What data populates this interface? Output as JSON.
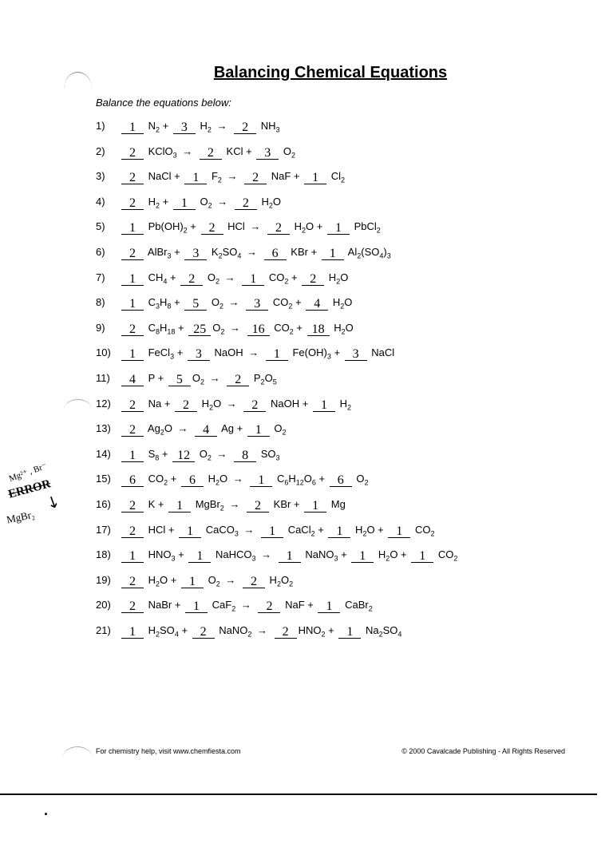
{
  "title": "Balancing Chemical Equations",
  "instruction": "Balance the equations below:",
  "footer_left": "For chemistry help, visit www.chemfiesta.com",
  "footer_right": "© 2000 Cavalcade Publishing - All Rights Reserved",
  "margin_notes": {
    "n1": "Mg²⁺ , Br⁻",
    "n2": "ERROR",
    "n3": "MgBr₂"
  },
  "equations": [
    {
      "n": "1)",
      "parts": [
        {
          "c": "1"
        },
        {
          "t": " N",
          "s": "2"
        },
        {
          "t": " + "
        },
        {
          "c": "3"
        },
        {
          "t": " H",
          "s": "2"
        },
        {
          "a": "→"
        },
        {
          "c": "2"
        },
        {
          "t": " NH",
          "s": "3"
        }
      ]
    },
    {
      "n": "2)",
      "parts": [
        {
          "c": "2"
        },
        {
          "t": " KClO",
          "s": "3"
        },
        {
          "a": "→"
        },
        {
          "c": "2"
        },
        {
          "t": " KCl + "
        },
        {
          "c": "3"
        },
        {
          "t": " O",
          "s": "2"
        }
      ]
    },
    {
      "n": "3)",
      "parts": [
        {
          "c": "2"
        },
        {
          "t": " NaCl + "
        },
        {
          "c": "1"
        },
        {
          "t": " F",
          "s": "2"
        },
        {
          "a": "→"
        },
        {
          "c": "2"
        },
        {
          "t": " NaF + "
        },
        {
          "c": "1"
        },
        {
          "t": " Cl",
          "s": "2"
        }
      ]
    },
    {
      "n": "4)",
      "parts": [
        {
          "c": "2"
        },
        {
          "t": " H",
          "s": "2"
        },
        {
          "t": " + "
        },
        {
          "c": "1"
        },
        {
          "t": " O",
          "s": "2"
        },
        {
          "a": "→"
        },
        {
          "c": "2"
        },
        {
          "t": " H",
          "s": "2"
        },
        {
          "t": "O"
        }
      ]
    },
    {
      "n": "5)",
      "parts": [
        {
          "c": "1"
        },
        {
          "t": " Pb(OH)",
          "s": "2"
        },
        {
          "t": " + "
        },
        {
          "c": "2"
        },
        {
          "t": " HCl "
        },
        {
          "a": "→"
        },
        {
          "c": "2"
        },
        {
          "t": " H",
          "s": "2"
        },
        {
          "t": "O + "
        },
        {
          "c": "1"
        },
        {
          "t": " PbCl",
          "s": "2"
        }
      ]
    },
    {
      "n": "6)",
      "parts": [
        {
          "c": "2"
        },
        {
          "t": " AlBr",
          "s": "3"
        },
        {
          "t": " + "
        },
        {
          "c": "3"
        },
        {
          "t": " K",
          "s": "2"
        },
        {
          "t": "SO",
          "s": "4"
        },
        {
          "a": "→"
        },
        {
          "c": "6"
        },
        {
          "t": " KBr + "
        },
        {
          "c": "1"
        },
        {
          "t": " Al",
          "s": "2"
        },
        {
          "t": "(SO",
          "s": "4"
        },
        {
          "t": ")",
          "s": "3"
        }
      ]
    },
    {
      "n": "7)",
      "parts": [
        {
          "c": "1"
        },
        {
          "t": " CH",
          "s": "4"
        },
        {
          "t": " + "
        },
        {
          "c": "2"
        },
        {
          "t": " O",
          "s": "2"
        },
        {
          "a": "→"
        },
        {
          "c": "1"
        },
        {
          "t": " CO",
          "s": "2"
        },
        {
          "t": " + "
        },
        {
          "c": "2"
        },
        {
          "t": " H",
          "s": "2"
        },
        {
          "t": "O"
        }
      ]
    },
    {
      "n": "8)",
      "parts": [
        {
          "c": "1"
        },
        {
          "t": " C",
          "s": "3"
        },
        {
          "t": "H",
          "s": "8"
        },
        {
          "t": " + "
        },
        {
          "c": "5"
        },
        {
          "t": " O",
          "s": "2"
        },
        {
          "a": "→"
        },
        {
          "c": "3"
        },
        {
          "t": " CO",
          "s": "2"
        },
        {
          "t": " + "
        },
        {
          "c": "4"
        },
        {
          "t": " H",
          "s": "2"
        },
        {
          "t": "O"
        }
      ]
    },
    {
      "n": "9)",
      "parts": [
        {
          "c": "2"
        },
        {
          "t": " C",
          "s": "8"
        },
        {
          "t": "H",
          "s": "18"
        },
        {
          "t": " + "
        },
        {
          "c": "25"
        },
        {
          "t": "O",
          "s": "2"
        },
        {
          "a": "→"
        },
        {
          "c": "16"
        },
        {
          "t": " CO",
          "s": "2"
        },
        {
          "t": " + "
        },
        {
          "c": "18"
        },
        {
          "t": " H",
          "s": "2"
        },
        {
          "t": "O"
        }
      ]
    },
    {
      "n": "10)",
      "parts": [
        {
          "c": "1"
        },
        {
          "t": " FeCl",
          "s": "3"
        },
        {
          "t": " + "
        },
        {
          "c": "3"
        },
        {
          "t": " NaOH "
        },
        {
          "a": "→"
        },
        {
          "c": "1"
        },
        {
          "t": " Fe(OH)",
          "s": "3"
        },
        {
          "t": " + "
        },
        {
          "c": "3"
        },
        {
          "t": " NaCl"
        }
      ]
    },
    {
      "n": "11)",
      "parts": [
        {
          "c": "4"
        },
        {
          "t": " P + "
        },
        {
          "c": "5"
        },
        {
          "t": "O",
          "s": "2"
        },
        {
          "a": "→"
        },
        {
          "c": "2"
        },
        {
          "t": " P",
          "s": "2"
        },
        {
          "t": "O",
          "s": "5"
        }
      ]
    },
    {
      "n": "12)",
      "parts": [
        {
          "c": "2"
        },
        {
          "t": " Na + "
        },
        {
          "c": "2"
        },
        {
          "t": " H",
          "s": "2"
        },
        {
          "t": "O "
        },
        {
          "a": "→"
        },
        {
          "c": "2"
        },
        {
          "t": " NaOH + "
        },
        {
          "c": "1"
        },
        {
          "t": " H",
          "s": "2"
        }
      ]
    },
    {
      "n": "13)",
      "parts": [
        {
          "c": "2"
        },
        {
          "t": " Ag",
          "s": "2"
        },
        {
          "t": "O "
        },
        {
          "a": "→"
        },
        {
          "c": "4"
        },
        {
          "t": " Ag + "
        },
        {
          "c": "1"
        },
        {
          "t": " O",
          "s": "2"
        }
      ]
    },
    {
      "n": "14)",
      "parts": [
        {
          "c": "1"
        },
        {
          "t": " S",
          "s": "8"
        },
        {
          "t": " + "
        },
        {
          "c": "12"
        },
        {
          "t": " O",
          "s": "2"
        },
        {
          "a": "→"
        },
        {
          "c": "8"
        },
        {
          "t": " SO",
          "s": "3"
        }
      ]
    },
    {
      "n": "15)",
      "parts": [
        {
          "c": "6"
        },
        {
          "t": " CO",
          "s": "2"
        },
        {
          "t": " + "
        },
        {
          "c": "6"
        },
        {
          "t": " H",
          "s": "2"
        },
        {
          "t": "O "
        },
        {
          "a": "→"
        },
        {
          "c": "1"
        },
        {
          "t": " C",
          "s": "6"
        },
        {
          "t": "H",
          "s": "12"
        },
        {
          "t": "O",
          "s": "6"
        },
        {
          "t": " + "
        },
        {
          "c": "6"
        },
        {
          "t": " O",
          "s": "2"
        }
      ]
    },
    {
      "n": "16)",
      "parts": [
        {
          "c": "2"
        },
        {
          "t": " K + "
        },
        {
          "c": "1"
        },
        {
          "t": " MgBr",
          "s": "2"
        },
        {
          "a": "→"
        },
        {
          "c": "2"
        },
        {
          "t": " KBr + "
        },
        {
          "c": "1"
        },
        {
          "t": " Mg"
        }
      ]
    },
    {
      "n": "17)",
      "parts": [
        {
          "c": "2"
        },
        {
          "t": " HCl + "
        },
        {
          "c": "1"
        },
        {
          "t": " CaCO",
          "s": "3"
        },
        {
          "a": "→"
        },
        {
          "c": "1"
        },
        {
          "t": " CaCl",
          "s": "2"
        },
        {
          "t": " + "
        },
        {
          "c": "1"
        },
        {
          "t": " H",
          "s": "2"
        },
        {
          "t": "O + "
        },
        {
          "c": "1"
        },
        {
          "t": " CO",
          "s": "2"
        }
      ]
    },
    {
      "n": "18)",
      "parts": [
        {
          "c": "1"
        },
        {
          "t": " HNO",
          "s": "3"
        },
        {
          "t": " + "
        },
        {
          "c": "1"
        },
        {
          "t": " NaHCO",
          "s": "3"
        },
        {
          "a": "→"
        },
        {
          "c": "1"
        },
        {
          "t": " NaNO",
          "s": "3"
        },
        {
          "t": " + "
        },
        {
          "c": "1"
        },
        {
          "t": " H",
          "s": "2"
        },
        {
          "t": "O + "
        },
        {
          "c": "1"
        },
        {
          "t": " CO",
          "s": "2"
        }
      ]
    },
    {
      "n": "19)",
      "parts": [
        {
          "c": "2"
        },
        {
          "t": " H",
          "s": "2"
        },
        {
          "t": "O + "
        },
        {
          "c": "1"
        },
        {
          "t": " O",
          "s": "2"
        },
        {
          "a": "→"
        },
        {
          "c": "2"
        },
        {
          "t": " H",
          "s": "2"
        },
        {
          "t": "O",
          "s": "2"
        }
      ]
    },
    {
      "n": "20)",
      "parts": [
        {
          "c": "2"
        },
        {
          "t": " NaBr + "
        },
        {
          "c": "1"
        },
        {
          "t": " CaF",
          "s": "2"
        },
        {
          "a": "→"
        },
        {
          "c": "2"
        },
        {
          "t": " NaF + "
        },
        {
          "c": "1"
        },
        {
          "t": " CaBr",
          "s": "2"
        }
      ]
    },
    {
      "n": "21)",
      "parts": [
        {
          "c": "1"
        },
        {
          "t": " H",
          "s": "2"
        },
        {
          "t": "SO",
          "s": "4"
        },
        {
          "t": " + "
        },
        {
          "c": "2"
        },
        {
          "t": " NaNO",
          "s": "2"
        },
        {
          "a": "→"
        },
        {
          "c": "2"
        },
        {
          "t": "HNO",
          "s": "2"
        },
        {
          "t": " + "
        },
        {
          "c": "1"
        },
        {
          "t": " Na",
          "s": "2"
        },
        {
          "t": "SO",
          "s": "4"
        }
      ]
    }
  ]
}
